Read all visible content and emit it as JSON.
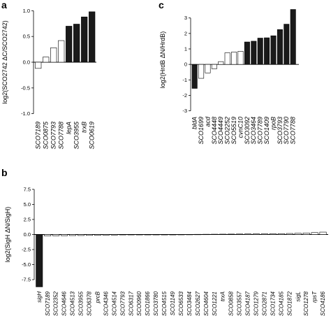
{
  "panel_labels": {
    "a": "a",
    "b": "b",
    "c": "c"
  },
  "colors": {
    "filled": "#1a1a1a",
    "open": "#ffffff",
    "axis": "#000000"
  },
  "chart_data": [
    {
      "panel": "a",
      "type": "bar",
      "ylabel": "log2(SCO2742 ΔC/SCO2742)",
      "ylim": [
        -1.1,
        1.1
      ],
      "yticks": [
        -1.0,
        -0.5,
        0.0,
        0.5,
        1.0
      ],
      "ytick_labels": [
        "-1.0",
        "-0.5",
        "0.0",
        "0.5",
        "1.0"
      ],
      "categories": [
        "SCO7189",
        "SCO0875",
        "SCO7793",
        "SCO7788",
        "lepA",
        "SCO3955",
        "trxB",
        "SCO0619"
      ],
      "values": [
        -0.12,
        0.1,
        0.28,
        0.42,
        0.7,
        0.74,
        0.88,
        0.98
      ],
      "filled": [
        false,
        false,
        false,
        false,
        true,
        true,
        true,
        true
      ],
      "grid": false
    },
    {
      "panel": "c",
      "type": "bar",
      "ylabel": "log2(HrdB ΔN/HrdB)",
      "ylim": [
        -3.2,
        3.8
      ],
      "yticks": [
        -3,
        -2,
        -1,
        0,
        1,
        2,
        3
      ],
      "ytick_labels": [
        "-3",
        "-2",
        "-1",
        "0",
        "1",
        "2",
        "3"
      ],
      "categories": [
        "bldA",
        "SCO1699",
        "acd",
        "SCO4448",
        "SCO4449",
        "SCO2252",
        "SCO5519",
        "cvnC10",
        "SCO3092",
        "SCO3464",
        "SCO7789",
        "SCO1409",
        "rpoB",
        "SCO3793",
        "SCO7790",
        "SCO7788"
      ],
      "values": [
        -1.55,
        -0.9,
        -0.55,
        -0.28,
        0.18,
        0.75,
        0.8,
        0.85,
        1.45,
        1.5,
        1.7,
        1.72,
        1.85,
        2.25,
        2.6,
        3.55
      ],
      "filled": [
        true,
        false,
        false,
        false,
        false,
        false,
        false,
        false,
        true,
        true,
        true,
        true,
        true,
        true,
        true,
        true
      ],
      "grid": false
    },
    {
      "panel": "b",
      "type": "bar",
      "ylabel": "log2(SigH ΔN/SigH)",
      "ylim": [
        -9.0,
        9.0
      ],
      "yticks": [
        -7.5,
        -5.0,
        -2.5,
        0.0,
        2.5,
        5.0,
        7.5
      ],
      "ytick_labels": [
        "-7.5",
        "-5.0",
        "-2.5",
        "0.0",
        "2.5",
        "5.0",
        "7.5"
      ],
      "categories": [
        "sigH",
        "SCO7189",
        "SCO2352",
        "SCO4646",
        "SCO4513",
        "SCO3955",
        "SCO6378",
        "prcB",
        "SCO4346",
        "SCO4514",
        "SCO7793",
        "SCO6317",
        "SCO0960",
        "SCO1866",
        "SCO3780",
        "SCO4515",
        "SCO1149",
        "SCO6533",
        "SCO3484",
        "SCO2627",
        "SCO4604",
        "SCO1221",
        "trxA",
        "SCO0858",
        "SCO3557",
        "SCO4187",
        "SCO1279",
        "SCO2871",
        "SCO1734",
        "SCO4185",
        "SCO1872",
        "sigL",
        "SCO1278",
        "rpsT",
        "SCO4186"
      ],
      "values": [
        -8.7,
        -0.25,
        -0.22,
        -0.2,
        -0.18,
        -0.17,
        -0.15,
        -0.13,
        -0.11,
        -0.09,
        -0.07,
        -0.05,
        -0.04,
        -0.03,
        -0.02,
        -0.01,
        0.0,
        0.01,
        0.02,
        0.03,
        0.04,
        0.05,
        0.06,
        0.07,
        0.08,
        0.09,
        0.1,
        0.11,
        0.13,
        0.15,
        0.17,
        0.2,
        0.25,
        0.32,
        0.4
      ],
      "filled": [
        true,
        false,
        false,
        false,
        false,
        false,
        false,
        false,
        false,
        false,
        false,
        false,
        false,
        false,
        false,
        false,
        false,
        false,
        false,
        false,
        false,
        false,
        false,
        false,
        false,
        false,
        false,
        false,
        false,
        false,
        false,
        false,
        false,
        false,
        false
      ],
      "grid": false
    }
  ]
}
